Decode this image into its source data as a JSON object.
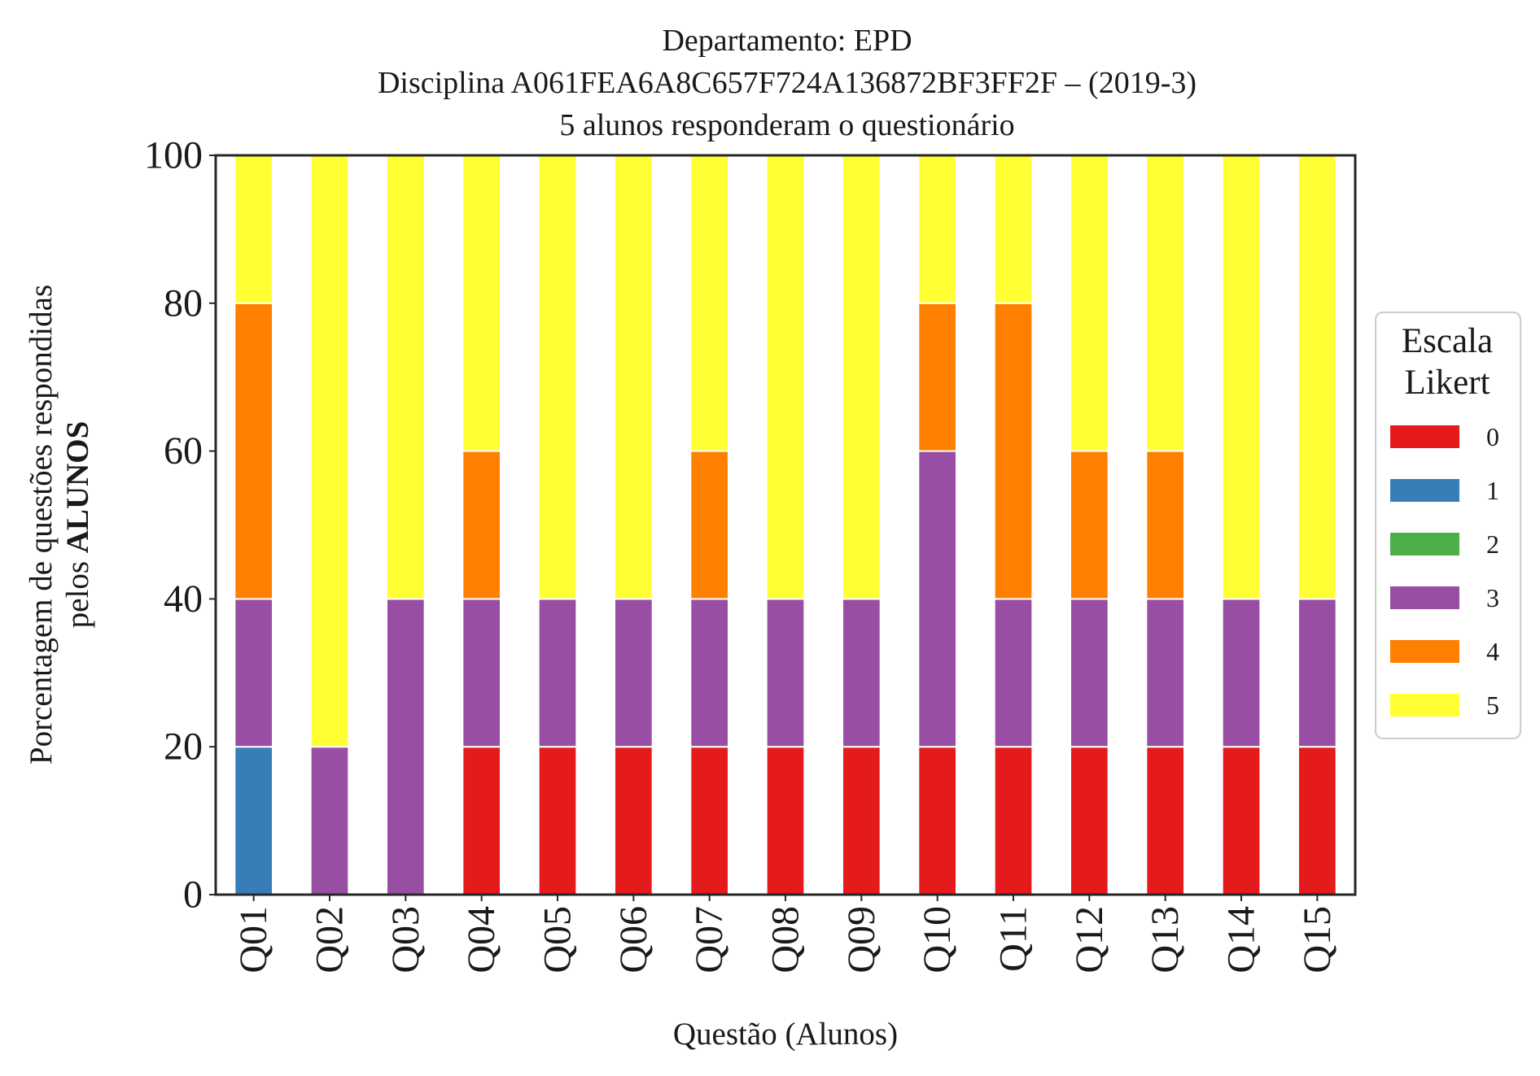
{
  "chart_data": {
    "type": "bar",
    "stacked": true,
    "title": [
      "Departamento: EPD",
      "Disciplina A061FEA6A8C657F724A136872BF3FF2F – (2019-3)",
      "5 alunos responderam o questionário"
    ],
    "xlabel": "Questão (Alunos)",
    "ylabel_line1": "Porcentagem de questões respondidas",
    "ylabel_line2_prefix": "pelos ",
    "ylabel_line2_bold": "ALUNOS",
    "ylim": [
      0,
      100
    ],
    "yticks": [
      0,
      20,
      40,
      60,
      80,
      100
    ],
    "grid": false,
    "legend": {
      "title_line1": "Escala",
      "title_line2": "Likert",
      "placement": "right-outside"
    },
    "categories": [
      "Q01",
      "Q02",
      "Q03",
      "Q04",
      "Q05",
      "Q06",
      "Q07",
      "Q08",
      "Q09",
      "Q10",
      "Q11",
      "Q12",
      "Q13",
      "Q14",
      "Q15"
    ],
    "series": [
      {
        "name": "0",
        "color": "#e41a1c",
        "values": [
          0,
          0,
          0,
          20,
          20,
          20,
          20,
          20,
          20,
          20,
          20,
          20,
          20,
          20,
          20
        ]
      },
      {
        "name": "1",
        "color": "#377eb8",
        "values": [
          20,
          0,
          0,
          0,
          0,
          0,
          0,
          0,
          0,
          0,
          0,
          0,
          0,
          0,
          0
        ]
      },
      {
        "name": "2",
        "color": "#4daf4a",
        "values": [
          0,
          0,
          0,
          0,
          0,
          0,
          0,
          0,
          0,
          0,
          0,
          0,
          0,
          0,
          0
        ]
      },
      {
        "name": "3",
        "color": "#984ea3",
        "values": [
          20,
          20,
          40,
          20,
          20,
          20,
          20,
          20,
          20,
          40,
          20,
          20,
          20,
          20,
          20
        ]
      },
      {
        "name": "4",
        "color": "#ff7f00",
        "values": [
          40,
          0,
          0,
          20,
          0,
          0,
          20,
          0,
          0,
          20,
          40,
          20,
          20,
          0,
          0
        ]
      },
      {
        "name": "5",
        "color": "#ffff33",
        "values": [
          20,
          80,
          60,
          40,
          60,
          60,
          40,
          60,
          60,
          20,
          20,
          40,
          40,
          60,
          60
        ]
      }
    ]
  }
}
